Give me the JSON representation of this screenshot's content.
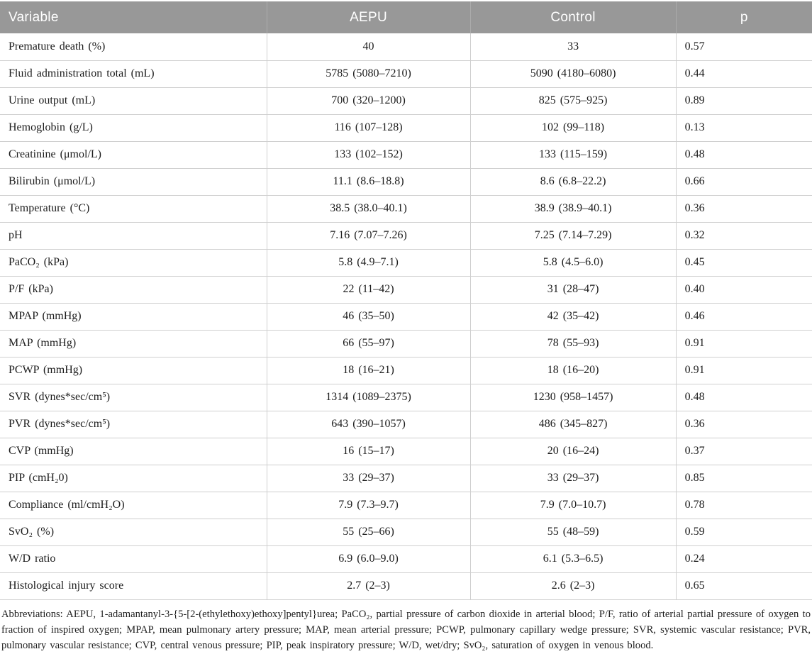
{
  "colors": {
    "header_bg": "#989898",
    "header_text": "#ffffff",
    "row_border": "#cfcfcf",
    "body_text": "#1c1c1c"
  },
  "table": {
    "headers": {
      "variable": "Variable",
      "aepu": "AEPU",
      "control": "Control",
      "p": "p"
    },
    "rows": [
      {
        "variable": "Premature death (%)",
        "aepu": "40",
        "control": "33",
        "p": "0.57"
      },
      {
        "variable": "Fluid administration total (mL)",
        "aepu": "5785 (5080–7210)",
        "control": "5090 (4180–6080)",
        "p": "0.44"
      },
      {
        "variable": "Urine output (mL)",
        "aepu": "700 (320–1200)",
        "control": "825 (575–925)",
        "p": "0.89"
      },
      {
        "variable": "Hemoglobin (g/L)",
        "aepu": "116 (107–128)",
        "control": "102 (99–118)",
        "p": "0.13"
      },
      {
        "variable": "Creatinine (μmol/L)",
        "aepu": "133 (102–152)",
        "control": "133 (115–159)",
        "p": "0.48"
      },
      {
        "variable": "Bilirubin (μmol/L)",
        "aepu": "11.1 (8.6–18.8)",
        "control": "8.6 (6.8–22.2)",
        "p": "0.66"
      },
      {
        "variable": "Temperature (°C)",
        "aepu": "38.5 (38.0–40.1)",
        "control": "38.9 (38.9–40.1)",
        "p": "0.36"
      },
      {
        "variable": "pH",
        "aepu": "7.16 (7.07–7.26)",
        "control": "7.25 (7.14–7.29)",
        "p": "0.32"
      },
      {
        "variable": "PaCO₂ (kPa)",
        "aepu": "5.8 (4.9–7.1)",
        "control": "5.8 (4.5–6.0)",
        "p": "0.45"
      },
      {
        "variable": "P/F (kPa)",
        "aepu": "22 (11–42)",
        "control": "31 (28–47)",
        "p": "0.40"
      },
      {
        "variable": "MPAP (mmHg)",
        "aepu": "46 (35–50)",
        "control": "42 (35–42)",
        "p": "0.46"
      },
      {
        "variable": "MAP (mmHg)",
        "aepu": "66 (55–97)",
        "control": "78 (55–93)",
        "p": "0.91"
      },
      {
        "variable": "PCWP (mmHg)",
        "aepu": "18 (16–21)",
        "control": "18 (16–20)",
        "p": "0.91"
      },
      {
        "variable": "SVR (dynes*sec/cm⁵)",
        "aepu": "1314 (1089–2375)",
        "control": "1230 (958–1457)",
        "p": "0.48"
      },
      {
        "variable": "PVR (dynes*sec/cm⁵)",
        "aepu": "643 (390–1057)",
        "control": "486 (345–827)",
        "p": "0.36"
      },
      {
        "variable": "CVP (mmHg)",
        "aepu": "16 (15–17)",
        "control": "20 (16–24)",
        "p": "0.37"
      },
      {
        "variable": "PIP (cmH₂0)",
        "aepu": "33 (29–37)",
        "control": "33 (29–37)",
        "p": "0.85"
      },
      {
        "variable": "Compliance (ml/cmH₂O)",
        "aepu": "7.9 (7.3–9.7)",
        "control": "7.9 (7.0–10.7)",
        "p": "0.78"
      },
      {
        "variable": "SvO₂ (%)",
        "aepu": "55 (25–66)",
        "control": "55 (48–59)",
        "p": "0.59"
      },
      {
        "variable": "W/D ratio",
        "aepu": "6.9 (6.0–9.0)",
        "control": "6.1 (5.3–6.5)",
        "p": "0.24"
      },
      {
        "variable": "Histological injury score",
        "aepu": "2.7 (2–3)",
        "control": "2.6 (2–3)",
        "p": "0.65"
      }
    ]
  },
  "footnote": {
    "text": "Abbreviations: AEPU, 1-adamantanyl-3-{5-[2-(ethylethoxy)ethoxy]pentyl}urea; PaCO₂, partial pressure of carbon dioxide in arterial blood; P/F, ratio of arterial partial pressure of oxygen to fraction of inspired oxygen; MPAP, mean pulmonary artery pressure; MAP, mean arterial pressure; PCWP, pulmonary capillary wedge pressure; SVR, systemic vascular resistance; PVR, pulmonary vascular resistance; CVP, central venous pressure; PIP, peak inspiratory pressure; W/D, wet/dry; SvO₂, saturation of oxygen in venous blood."
  }
}
